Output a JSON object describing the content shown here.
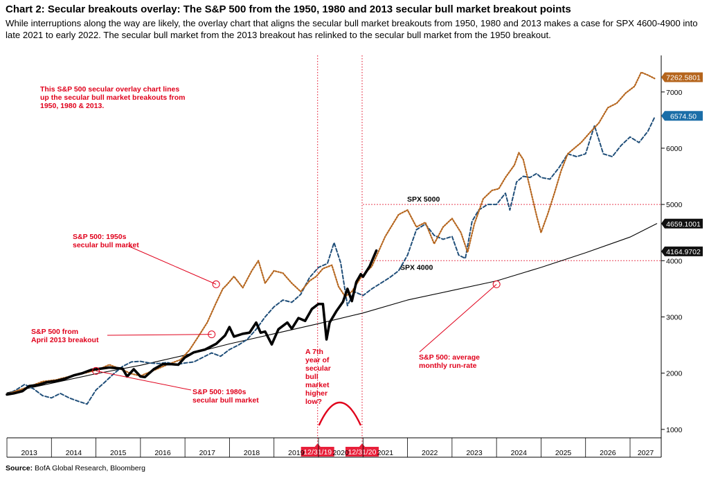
{
  "header": {
    "title": "Chart 2: Secular breakouts overlay: The S&P 500 from the 1950, 1980 and 2013 secular bull market breakout points",
    "subtitle": "While interruptions along the way are likely, the overlay chart that aligns the secular bull market breakouts from 1950, 1980 and 2013 makes a case for SPX 4600-4900 into late 2021 to early 2022. The secular bull market from the 2013 breakout has relinked to the secular bull market from the 1950 breakout."
  },
  "footer": {
    "source_label": "Source:",
    "source_text": "BofA Global Research, Bloomberg"
  },
  "colors": {
    "sp2013": "#000000",
    "s1950": "#b5651d",
    "s1980": "#1f4e79",
    "runrate": "#000000",
    "annotation": "#e0001b",
    "badge_1950": "#b5651d",
    "badge_1980": "#1b6ea8",
    "badge_runrate": "#111111",
    "badge_2013": "#111111",
    "date_badge": "#e8203a"
  },
  "chart_data": {
    "type": "line",
    "title": "",
    "xlabel": "",
    "ylabel": "",
    "xlim": [
      2013.0,
      2027.7
    ],
    "ylim": [
      850,
      7650
    ],
    "y_ticks": [
      1000,
      2000,
      3000,
      4000,
      5000,
      6000,
      7000
    ],
    "x_ticks": [
      "2013",
      "2014",
      "2015",
      "2016",
      "2017",
      "2018",
      "2019",
      "2020",
      "2021",
      "2022",
      "2023",
      "2024",
      "2025",
      "2026",
      "2027"
    ],
    "grid": false,
    "series": [
      {
        "key": "sp2013",
        "style": "solid-thick",
        "points": [
          [
            2013.0,
            1620
          ],
          [
            2013.15,
            1640
          ],
          [
            2013.35,
            1680
          ],
          [
            2013.5,
            1770
          ],
          [
            2013.7,
            1790
          ],
          [
            2013.9,
            1840
          ],
          [
            2014.1,
            1860
          ],
          [
            2014.3,
            1900
          ],
          [
            2014.5,
            1960
          ],
          [
            2014.7,
            2000
          ],
          [
            2014.9,
            2060
          ],
          [
            2015.1,
            2080
          ],
          [
            2015.3,
            2100
          ],
          [
            2015.45,
            2090
          ],
          [
            2015.6,
            2080
          ],
          [
            2015.7,
            1940
          ],
          [
            2015.85,
            2070
          ],
          [
            2016.0,
            1940
          ],
          [
            2016.1,
            1930
          ],
          [
            2016.3,
            2070
          ],
          [
            2016.5,
            2160
          ],
          [
            2016.7,
            2160
          ],
          [
            2016.85,
            2150
          ],
          [
            2017.0,
            2280
          ],
          [
            2017.2,
            2370
          ],
          [
            2017.45,
            2420
          ],
          [
            2017.7,
            2520
          ],
          [
            2017.9,
            2670
          ],
          [
            2018.0,
            2820
          ],
          [
            2018.1,
            2650
          ],
          [
            2018.3,
            2700
          ],
          [
            2018.45,
            2720
          ],
          [
            2018.6,
            2900
          ],
          [
            2018.7,
            2720
          ],
          [
            2018.8,
            2740
          ],
          [
            2018.95,
            2510
          ],
          [
            2019.1,
            2780
          ],
          [
            2019.3,
            2900
          ],
          [
            2019.4,
            2790
          ],
          [
            2019.55,
            2980
          ],
          [
            2019.7,
            2930
          ],
          [
            2019.85,
            3140
          ],
          [
            2020.0,
            3230
          ],
          [
            2020.1,
            3230
          ],
          [
            2020.18,
            2600
          ],
          [
            2020.25,
            2900
          ],
          [
            2020.4,
            3100
          ],
          [
            2020.55,
            3270
          ],
          [
            2020.65,
            3500
          ],
          [
            2020.75,
            3280
          ],
          [
            2020.85,
            3620
          ],
          [
            2020.95,
            3760
          ],
          [
            2021.0,
            3714
          ],
          [
            2021.15,
            3900
          ],
          [
            2021.3,
            4180
          ]
        ]
      },
      {
        "key": "s1950",
        "style": "dotted",
        "points": [
          [
            2013.0,
            1620
          ],
          [
            2013.2,
            1680
          ],
          [
            2013.5,
            1760
          ],
          [
            2013.8,
            1850
          ],
          [
            2014.1,
            1880
          ],
          [
            2014.4,
            1940
          ],
          [
            2014.8,
            2010
          ],
          [
            2015.1,
            2080
          ],
          [
            2015.3,
            2150
          ],
          [
            2015.5,
            2090
          ],
          [
            2015.8,
            1990
          ],
          [
            2016.0,
            1950
          ],
          [
            2016.3,
            2050
          ],
          [
            2016.6,
            2150
          ],
          [
            2016.9,
            2240
          ],
          [
            2017.1,
            2410
          ],
          [
            2017.3,
            2650
          ],
          [
            2017.5,
            2900
          ],
          [
            2017.7,
            3250
          ],
          [
            2017.85,
            3500
          ],
          [
            2017.95,
            3580
          ],
          [
            2018.1,
            3720
          ],
          [
            2018.3,
            3520
          ],
          [
            2018.5,
            3820
          ],
          [
            2018.65,
            4000
          ],
          [
            2018.8,
            3600
          ],
          [
            2019.0,
            3820
          ],
          [
            2019.2,
            3780
          ],
          [
            2019.4,
            3600
          ],
          [
            2019.6,
            3450
          ],
          [
            2019.8,
            3640
          ],
          [
            2019.95,
            3720
          ],
          [
            2020.1,
            3860
          ],
          [
            2020.3,
            3920
          ],
          [
            2020.45,
            3540
          ],
          [
            2020.6,
            3360
          ],
          [
            2020.75,
            3450
          ],
          [
            2020.95,
            3700
          ],
          [
            2021.2,
            3900
          ],
          [
            2021.5,
            4430
          ],
          [
            2021.8,
            4820
          ],
          [
            2022.0,
            4900
          ],
          [
            2022.2,
            4600
          ],
          [
            2022.4,
            4680
          ],
          [
            2022.6,
            4300
          ],
          [
            2022.8,
            4600
          ],
          [
            2023.0,
            4750
          ],
          [
            2023.2,
            4500
          ],
          [
            2023.35,
            4150
          ],
          [
            2023.5,
            4650
          ],
          [
            2023.7,
            5100
          ],
          [
            2023.9,
            5250
          ],
          [
            2024.05,
            5280
          ],
          [
            2024.2,
            5480
          ],
          [
            2024.4,
            5700
          ],
          [
            2024.5,
            5920
          ],
          [
            2024.6,
            5800
          ],
          [
            2024.75,
            5300
          ],
          [
            2024.9,
            4800
          ],
          [
            2025.0,
            4500
          ],
          [
            2025.15,
            4830
          ],
          [
            2025.3,
            5200
          ],
          [
            2025.45,
            5600
          ],
          [
            2025.6,
            5900
          ],
          [
            2025.75,
            6000
          ],
          [
            2025.9,
            6100
          ],
          [
            2026.1,
            6280
          ],
          [
            2026.3,
            6450
          ],
          [
            2026.5,
            6720
          ],
          [
            2026.7,
            6800
          ],
          [
            2026.9,
            6980
          ],
          [
            2027.1,
            7100
          ],
          [
            2027.25,
            7350
          ],
          [
            2027.4,
            7300
          ],
          [
            2027.55,
            7240
          ]
        ]
      },
      {
        "key": "s1980",
        "style": "dashed",
        "points": [
          [
            2013.0,
            1620
          ],
          [
            2013.2,
            1700
          ],
          [
            2013.4,
            1800
          ],
          [
            2013.6,
            1720
          ],
          [
            2013.8,
            1600
          ],
          [
            2014.0,
            1560
          ],
          [
            2014.2,
            1640
          ],
          [
            2014.4,
            1560
          ],
          [
            2014.6,
            1500
          ],
          [
            2014.8,
            1450
          ],
          [
            2015.0,
            1700
          ],
          [
            2015.2,
            1840
          ],
          [
            2015.4,
            1990
          ],
          [
            2015.6,
            2120
          ],
          [
            2015.8,
            2200
          ],
          [
            2016.0,
            2210
          ],
          [
            2016.2,
            2180
          ],
          [
            2016.4,
            2170
          ],
          [
            2016.6,
            2190
          ],
          [
            2016.8,
            2150
          ],
          [
            2017.0,
            2180
          ],
          [
            2017.2,
            2200
          ],
          [
            2017.4,
            2280
          ],
          [
            2017.6,
            2360
          ],
          [
            2017.8,
            2300
          ],
          [
            2018.0,
            2420
          ],
          [
            2018.2,
            2500
          ],
          [
            2018.4,
            2600
          ],
          [
            2018.6,
            2780
          ],
          [
            2018.8,
            3000
          ],
          [
            2019.0,
            3180
          ],
          [
            2019.2,
            3300
          ],
          [
            2019.4,
            3260
          ],
          [
            2019.6,
            3400
          ],
          [
            2019.8,
            3700
          ],
          [
            2020.0,
            3880
          ],
          [
            2020.2,
            3950
          ],
          [
            2020.35,
            4320
          ],
          [
            2020.5,
            3960
          ],
          [
            2020.65,
            3200
          ],
          [
            2020.8,
            3450
          ],
          [
            2021.0,
            3380
          ],
          [
            2021.2,
            3500
          ],
          [
            2021.4,
            3600
          ],
          [
            2021.6,
            3700
          ],
          [
            2021.8,
            3820
          ],
          [
            2022.0,
            4100
          ],
          [
            2022.2,
            4550
          ],
          [
            2022.4,
            4650
          ],
          [
            2022.6,
            4450
          ],
          [
            2022.8,
            4380
          ],
          [
            2023.0,
            4430
          ],
          [
            2023.15,
            4100
          ],
          [
            2023.3,
            4040
          ],
          [
            2023.45,
            4700
          ],
          [
            2023.6,
            4900
          ],
          [
            2023.8,
            5000
          ],
          [
            2024.0,
            5000
          ],
          [
            2024.2,
            5200
          ],
          [
            2024.3,
            4900
          ],
          [
            2024.45,
            5400
          ],
          [
            2024.6,
            5500
          ],
          [
            2024.75,
            5480
          ],
          [
            2024.9,
            5550
          ],
          [
            2025.0,
            5480
          ],
          [
            2025.2,
            5450
          ],
          [
            2025.4,
            5650
          ],
          [
            2025.6,
            5900
          ],
          [
            2025.8,
            5850
          ],
          [
            2026.0,
            5900
          ],
          [
            2026.2,
            6400
          ],
          [
            2026.4,
            5900
          ],
          [
            2026.6,
            5850
          ],
          [
            2026.8,
            6050
          ],
          [
            2027.0,
            6200
          ],
          [
            2027.2,
            6100
          ],
          [
            2027.4,
            6300
          ],
          [
            2027.55,
            6550
          ]
        ]
      },
      {
        "key": "runrate",
        "style": "solid-thin",
        "points": [
          [
            2013.0,
            1650
          ],
          [
            2014.0,
            1820
          ],
          [
            2015.0,
            1990
          ],
          [
            2016.0,
            2140
          ],
          [
            2017.0,
            2320
          ],
          [
            2018.0,
            2520
          ],
          [
            2019.0,
            2700
          ],
          [
            2020.0,
            2880
          ],
          [
            2021.0,
            3070
          ],
          [
            2022.0,
            3300
          ],
          [
            2023.0,
            3470
          ],
          [
            2024.0,
            3640
          ],
          [
            2025.0,
            3880
          ],
          [
            2026.0,
            4140
          ],
          [
            2027.0,
            4420
          ],
          [
            2027.6,
            4659
          ]
        ]
      }
    ],
    "value_badges": [
      {
        "label": "7262.5801",
        "value": 7262.58,
        "color_key": "badge_1950"
      },
      {
        "label": "6574.50",
        "value": 6574.5,
        "color_key": "badge_1980"
      },
      {
        "label": "4659.1001",
        "value": 4659.1,
        "color_key": "badge_runrate"
      },
      {
        "label": "4164.9702",
        "value": 4164.97,
        "color_key": "badge_2013"
      }
    ],
    "reference_lines": [
      {
        "label": "SPX 5000",
        "value": 5000,
        "x_start": 2021.0
      },
      {
        "label": "SPX 4000",
        "value": 4000,
        "x_start": 2021.0
      }
    ],
    "vertical_markers": [
      {
        "label": "12/31/19",
        "x": 2019.98
      },
      {
        "label": "12/31/20",
        "x": 2020.98
      }
    ],
    "annotations": [
      {
        "text": [
          "This S&P 500 secular overlay chart lines",
          "up the secular bull market breakouts from",
          "1950, 1980 & 2013."
        ]
      },
      {
        "text": [
          "S&P 500: 1950s",
          "secular bull market"
        ],
        "target": [
          2017.7,
          3580
        ]
      },
      {
        "text": [
          "S&P 500 from",
          "April 2013 breakout"
        ],
        "target": [
          2017.6,
          2690
        ]
      },
      {
        "text": [
          "S&P 500: 1980s",
          "secular bull market"
        ],
        "target": [
          2015.0,
          2040
        ]
      },
      {
        "text": [
          "A 7th",
          "year of",
          "secular",
          "bull",
          "market",
          "higher",
          "low?"
        ]
      },
      {
        "text": [
          "S&P 500: average",
          "monthly run-rate"
        ],
        "target": [
          2024.0,
          3580
        ]
      }
    ]
  }
}
